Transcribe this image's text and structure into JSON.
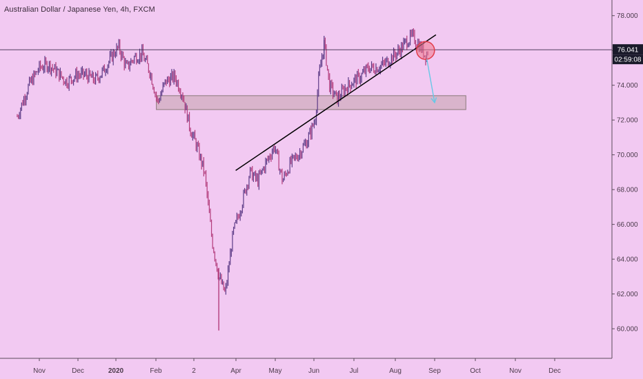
{
  "header": {
    "title": "Australian Dollar / Japanese Yen, 4h, FXCM"
  },
  "price_scale": {
    "current_price": "76.041",
    "countdown": "02:59:08"
  },
  "colors": {
    "background": "#f2c9f2",
    "candle": "#5b3a86",
    "candle_alt": "#b23a7a",
    "trendline": "#000000",
    "zone_fill": "#d9b4cc",
    "zone_stroke": "#8a7a7a",
    "arrow": "#66c8e6",
    "circle": "#e23a4a"
  },
  "chart_data": {
    "type": "candlestick",
    "title": "Australian Dollar / Japanese Yen, 4h, FXCM",
    "ylim": [
      58.3,
      78.9
    ],
    "y_ticks": [
      "78.000",
      "76.000",
      "74.000",
      "72.000",
      "70.000",
      "68.000",
      "66.000",
      "64.000",
      "62.000",
      "60.000"
    ],
    "y_tick_values": [
      78,
      76,
      74,
      72,
      70,
      68,
      66,
      64,
      62,
      60
    ],
    "x_ticks": [
      "Nov",
      "Dec",
      "2020",
      "Feb",
      "2",
      "Apr",
      "May",
      "Jun",
      "Jul",
      "Aug",
      "Sep",
      "Oct",
      "Nov",
      "Dec"
    ],
    "x_tick_bold": [
      "2020"
    ],
    "close_path_dates": [
      "Oct 15",
      "Oct 24",
      "Nov 1",
      "Nov 8",
      "Nov 14",
      "Nov 22",
      "Nov 30",
      "Dec 6",
      "Dec 14",
      "Dec 20",
      "Dec 28",
      "Jan 2",
      "Jan 8",
      "Jan 14",
      "Jan 20",
      "Jan 26",
      "Feb 1",
      "Feb 7",
      "Feb 14",
      "Feb 20",
      "Feb 26",
      "Mar 2",
      "Mar 8",
      "Mar 14",
      "Mar 19",
      "Mar 24",
      "Mar 30",
      "Apr 5",
      "Apr 12",
      "Apr 18",
      "Apr 24",
      "May 1",
      "May 7",
      "May 13",
      "May 19",
      "May 26",
      "Jun 1",
      "Jun 4",
      "Jun 8",
      "Jun 12",
      "Jun 18",
      "Jun 24",
      "Jun 30",
      "Jul 6",
      "Jul 12",
      "Jul 18",
      "Jul 24",
      "Jul 30",
      "Aug 5",
      "Aug 10",
      "Aug 15",
      "Aug 20",
      "Aug 25",
      "Aug 27"
    ],
    "close_path_values": [
      72.2,
      74.0,
      75.0,
      75.2,
      74.8,
      74.2,
      74.6,
      74.6,
      74.3,
      74.8,
      75.8,
      76.2,
      75.0,
      75.6,
      75.8,
      74.8,
      73.0,
      74.2,
      74.5,
      73.5,
      71.5,
      70.5,
      69.0,
      65.0,
      63.0,
      62.0,
      65.5,
      67.0,
      69.0,
      68.5,
      69.5,
      70.5,
      68.5,
      69.5,
      70.0,
      70.8,
      72.0,
      74.5,
      76.5,
      74.0,
      73.2,
      73.8,
      74.2,
      74.5,
      75.0,
      75.0,
      75.2,
      75.6,
      76.0,
      76.5,
      76.8,
      76.3,
      75.7,
      76.0
    ],
    "wick_extremes": {
      "high": 76.6,
      "high_date": "Jun 8",
      "low": 59.9,
      "low_date": "Mar 19"
    },
    "last_price": 76.041,
    "drawings": {
      "support_zone": {
        "date_from": "Jan 31",
        "date_to": "Sep 25",
        "price_low": 72.6,
        "price_high": 73.4
      },
      "trendline": {
        "date_from": "Apr 1",
        "price_from": 69.1,
        "date_to": "Sep 2",
        "price_to": 76.9
      },
      "highlight_circle_at": {
        "date": "Aug 25",
        "price": 76.0
      },
      "projection_arrow": {
        "date_from": "Aug 26",
        "price_from": 75.5,
        "date_to": "Sep 1",
        "price_to": 73.0
      },
      "horizontal_price_line": 76.041
    },
    "grid": false,
    "legend": "none"
  }
}
